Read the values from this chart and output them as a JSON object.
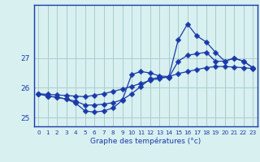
{
  "xlabel": "Graphe des températures (°c)",
  "hours": [
    0,
    1,
    2,
    3,
    4,
    5,
    6,
    7,
    8,
    9,
    10,
    11,
    12,
    13,
    14,
    15,
    16,
    17,
    18,
    19,
    20,
    21,
    22,
    23
  ],
  "line_smooth": [
    25.8,
    25.78,
    25.76,
    25.74,
    25.72,
    25.7,
    25.75,
    25.8,
    25.88,
    25.96,
    26.05,
    26.15,
    26.25,
    26.32,
    26.38,
    26.48,
    26.55,
    26.62,
    26.68,
    26.72,
    26.72,
    26.7,
    26.68,
    26.65
  ],
  "line_mid": [
    25.8,
    25.72,
    25.68,
    25.62,
    25.55,
    25.42,
    25.42,
    25.45,
    25.5,
    25.6,
    25.8,
    26.05,
    26.3,
    26.35,
    26.35,
    26.9,
    27.1,
    27.15,
    27.2,
    26.9,
    26.9,
    27.0,
    26.9,
    26.68
  ],
  "line_spiky": [
    25.8,
    25.72,
    25.68,
    25.62,
    25.48,
    25.22,
    25.18,
    25.22,
    25.32,
    25.58,
    26.45,
    26.55,
    26.5,
    26.4,
    26.38,
    27.62,
    28.15,
    27.75,
    27.55,
    27.2,
    26.9,
    27.0,
    26.9,
    26.68
  ],
  "line_color": "#1a3aaa",
  "bg_color": "#d8f0f0",
  "grid_color": "#aacccc",
  "ylim": [
    24.7,
    28.8
  ],
  "yticks": [
    25,
    26,
    27
  ],
  "markersize": 3.5
}
